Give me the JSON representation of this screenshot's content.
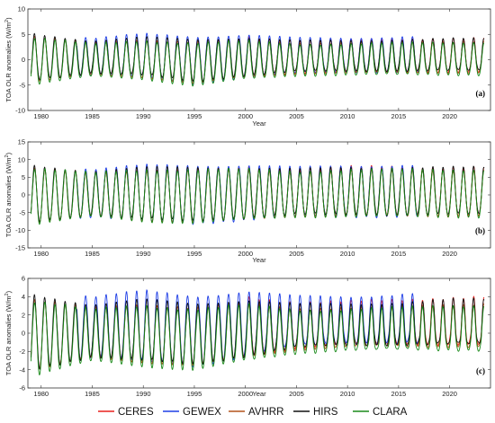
{
  "chart_data": [
    {
      "type": "line",
      "panel_label": "(a)",
      "xlabel": "Year",
      "ylabel": "TOA OLR anomalies (W/m",
      "ylabel_sup": "2",
      "ylabel_tail": ")",
      "xlim": [
        1978.7,
        2024.0
      ],
      "ylim": [
        -10,
        10
      ],
      "xticks": [
        1980,
        1985,
        1990,
        1995,
        2000,
        2005,
        2010,
        2015,
        2020
      ],
      "xtick_labels": [
        "1980",
        "1985",
        "1990",
        "1995",
        "2000",
        "2005",
        "2010",
        "2015",
        "2020"
      ],
      "yticks": [
        -10,
        -5,
        0,
        5,
        10
      ],
      "ytick_labels": [
        "-10",
        "-5",
        "0",
        "5",
        "10"
      ],
      "amplitude_by_year": [
        [
          1979,
          5.0
        ],
        [
          1985,
          3.6
        ],
        [
          1990,
          4.3
        ],
        [
          1995,
          3.8
        ],
        [
          2000,
          4.2
        ],
        [
          2005,
          3.6
        ],
        [
          2010,
          3.6
        ],
        [
          2015,
          3.8
        ],
        [
          2020,
          4.0
        ],
        [
          2023.4,
          4.0
        ]
      ],
      "trough_depth_by_year": [
        [
          1979,
          5.2
        ],
        [
          1985,
          3.4
        ],
        [
          1990,
          4.0
        ],
        [
          1995,
          5.4
        ],
        [
          2000,
          4.0
        ],
        [
          2005,
          3.2
        ],
        [
          2010,
          3.0
        ],
        [
          2015,
          3.0
        ],
        [
          2020,
          3.0
        ],
        [
          2023.4,
          3.0
        ]
      ],
      "series": [
        {
          "name": "CERES",
          "color": "#e8211d",
          "start": 2000.2,
          "end": 2023.4,
          "offset": 0.15,
          "scale": 1.04
        },
        {
          "name": "GEWEX",
          "color": "#1f3fe6",
          "start": 1983.5,
          "end": 2017.0,
          "offset": 0.35,
          "scale": 1.1
        },
        {
          "name": "AVHRR",
          "color": "#b4531a",
          "start": 1979.0,
          "end": 2023.4,
          "offset": -0.2,
          "scale": 0.97
        },
        {
          "name": "HIRS",
          "color": "#111111",
          "start": 1979.0,
          "end": 2023.4,
          "offset": 0.25,
          "scale": 0.98
        },
        {
          "name": "CLARA",
          "color": "#1a8a1a",
          "start": 1979.0,
          "end": 2023.4,
          "offset": -0.5,
          "scale": 1.0
        }
      ]
    },
    {
      "type": "line",
      "panel_label": "(b)",
      "xlabel": "Year",
      "ylabel": "TOA OLR anomalies (W/m",
      "ylabel_sup": "2",
      "ylabel_tail": ")",
      "xlim": [
        1978.7,
        2024.0
      ],
      "ylim": [
        -15,
        15
      ],
      "xticks": [
        1980,
        1985,
        1990,
        1995,
        2000,
        2005,
        2010,
        2015,
        2020
      ],
      "xtick_labels": [
        "1980",
        "1985",
        "1990",
        "1995",
        "2000",
        "2005",
        "2010",
        "2015",
        "2020"
      ],
      "yticks": [
        -15,
        -10,
        -5,
        0,
        5,
        10,
        15
      ],
      "ytick_labels": [
        "-15",
        "-10",
        "-5",
        "0",
        "5",
        "10",
        "15"
      ],
      "amplitude_by_year": [
        [
          1979,
          8.0
        ],
        [
          1985,
          6.5
        ],
        [
          1990,
          7.5
        ],
        [
          1995,
          7.5
        ],
        [
          2000,
          7.5
        ],
        [
          2005,
          7.0
        ],
        [
          2010,
          7.5
        ],
        [
          2015,
          7.5
        ],
        [
          2020,
          7.5
        ],
        [
          2023.4,
          7.5
        ]
      ],
      "trough_depth_by_year": [
        [
          1979,
          9.5
        ],
        [
          1985,
          7.0
        ],
        [
          1990,
          8.5
        ],
        [
          1995,
          9.0
        ],
        [
          2000,
          8.0
        ],
        [
          2005,
          7.0
        ],
        [
          2010,
          7.0
        ],
        [
          2015,
          7.0
        ],
        [
          2020,
          7.0
        ],
        [
          2023.4,
          7.0
        ]
      ],
      "series": [
        {
          "name": "CERES",
          "color": "#e8211d",
          "start": 2000.2,
          "end": 2023.4,
          "offset": 0.2,
          "scale": 1.03
        },
        {
          "name": "GEWEX",
          "color": "#1f3fe6",
          "start": 1983.5,
          "end": 2017.0,
          "offset": 0.3,
          "scale": 1.08
        },
        {
          "name": "AVHRR",
          "color": "#b4531a",
          "start": 1979.0,
          "end": 2023.4,
          "offset": -0.2,
          "scale": 0.98
        },
        {
          "name": "HIRS",
          "color": "#111111",
          "start": 1979.0,
          "end": 2023.4,
          "offset": 0.3,
          "scale": 1.0
        },
        {
          "name": "CLARA",
          "color": "#1a8a1a",
          "start": 1979.0,
          "end": 2023.4,
          "offset": -0.3,
          "scale": 1.0
        }
      ]
    },
    {
      "type": "line",
      "panel_label": "(c)",
      "xlabel": "Year",
      "ylabel": "TOA OLR anomalies (W/m",
      "ylabel_sup": "2",
      "ylabel_tail": ")",
      "xlim": [
        1978.7,
        2024.0
      ],
      "ylim": [
        -6,
        6
      ],
      "xticks": [
        1980,
        1985,
        1990,
        1995,
        2000,
        2005,
        2010,
        2015,
        2020
      ],
      "xtick_labels": [
        "1980",
        "1985",
        "1990",
        "1995",
        "2000",
        "2005",
        "2010",
        "2015",
        "2020"
      ],
      "yticks": [
        -6,
        -4,
        -2,
        0,
        2,
        4,
        6
      ],
      "ytick_labels": [
        "-6",
        "-4",
        "-2",
        "0",
        "2",
        "4",
        "6"
      ],
      "amplitude_by_year": [
        [
          1979,
          4.0
        ],
        [
          1985,
          3.0
        ],
        [
          1990,
          3.5
        ],
        [
          1995,
          3.0
        ],
        [
          2000,
          3.5
        ],
        [
          2005,
          3.0
        ],
        [
          2010,
          3.0
        ],
        [
          2015,
          3.2
        ],
        [
          2020,
          3.5
        ],
        [
          2023.4,
          3.5
        ]
      ],
      "trough_depth_by_year": [
        [
          1979,
          5.0
        ],
        [
          1985,
          3.2
        ],
        [
          1990,
          3.8
        ],
        [
          1995,
          4.2
        ],
        [
          2000,
          3.2
        ],
        [
          2005,
          2.2
        ],
        [
          2010,
          1.8
        ],
        [
          2015,
          1.8
        ],
        [
          2020,
          1.8
        ],
        [
          2023.4,
          1.8
        ]
      ],
      "series": [
        {
          "name": "CERES",
          "color": "#e8211d",
          "start": 2000.2,
          "end": 2023.4,
          "offset": 0.3,
          "scale": 1.05
        },
        {
          "name": "GEWEX",
          "color": "#1f3fe6",
          "start": 1983.5,
          "end": 2017.0,
          "offset": 0.6,
          "scale": 1.15
        },
        {
          "name": "AVHRR",
          "color": "#b4531a",
          "start": 1979.0,
          "end": 2023.4,
          "offset": -0.1,
          "scale": 0.95
        },
        {
          "name": "HIRS",
          "color": "#111111",
          "start": 1979.0,
          "end": 2023.4,
          "offset": 0.2,
          "scale": 1.0
        },
        {
          "name": "CLARA",
          "color": "#1a8a1a",
          "start": 1979.0,
          "end": 2023.4,
          "offset": -0.4,
          "scale": 1.0
        }
      ]
    }
  ],
  "legend": {
    "placement": "bottom-center",
    "items": [
      {
        "label": "CERES",
        "color": "#e8211d"
      },
      {
        "label": "GEWEX",
        "color": "#1f3fe6"
      },
      {
        "label": "AVHRR",
        "color": "#b4531a"
      },
      {
        "label": "HIRS",
        "color": "#111111"
      },
      {
        "label": "CLARA",
        "color": "#1a8a1a"
      }
    ]
  }
}
